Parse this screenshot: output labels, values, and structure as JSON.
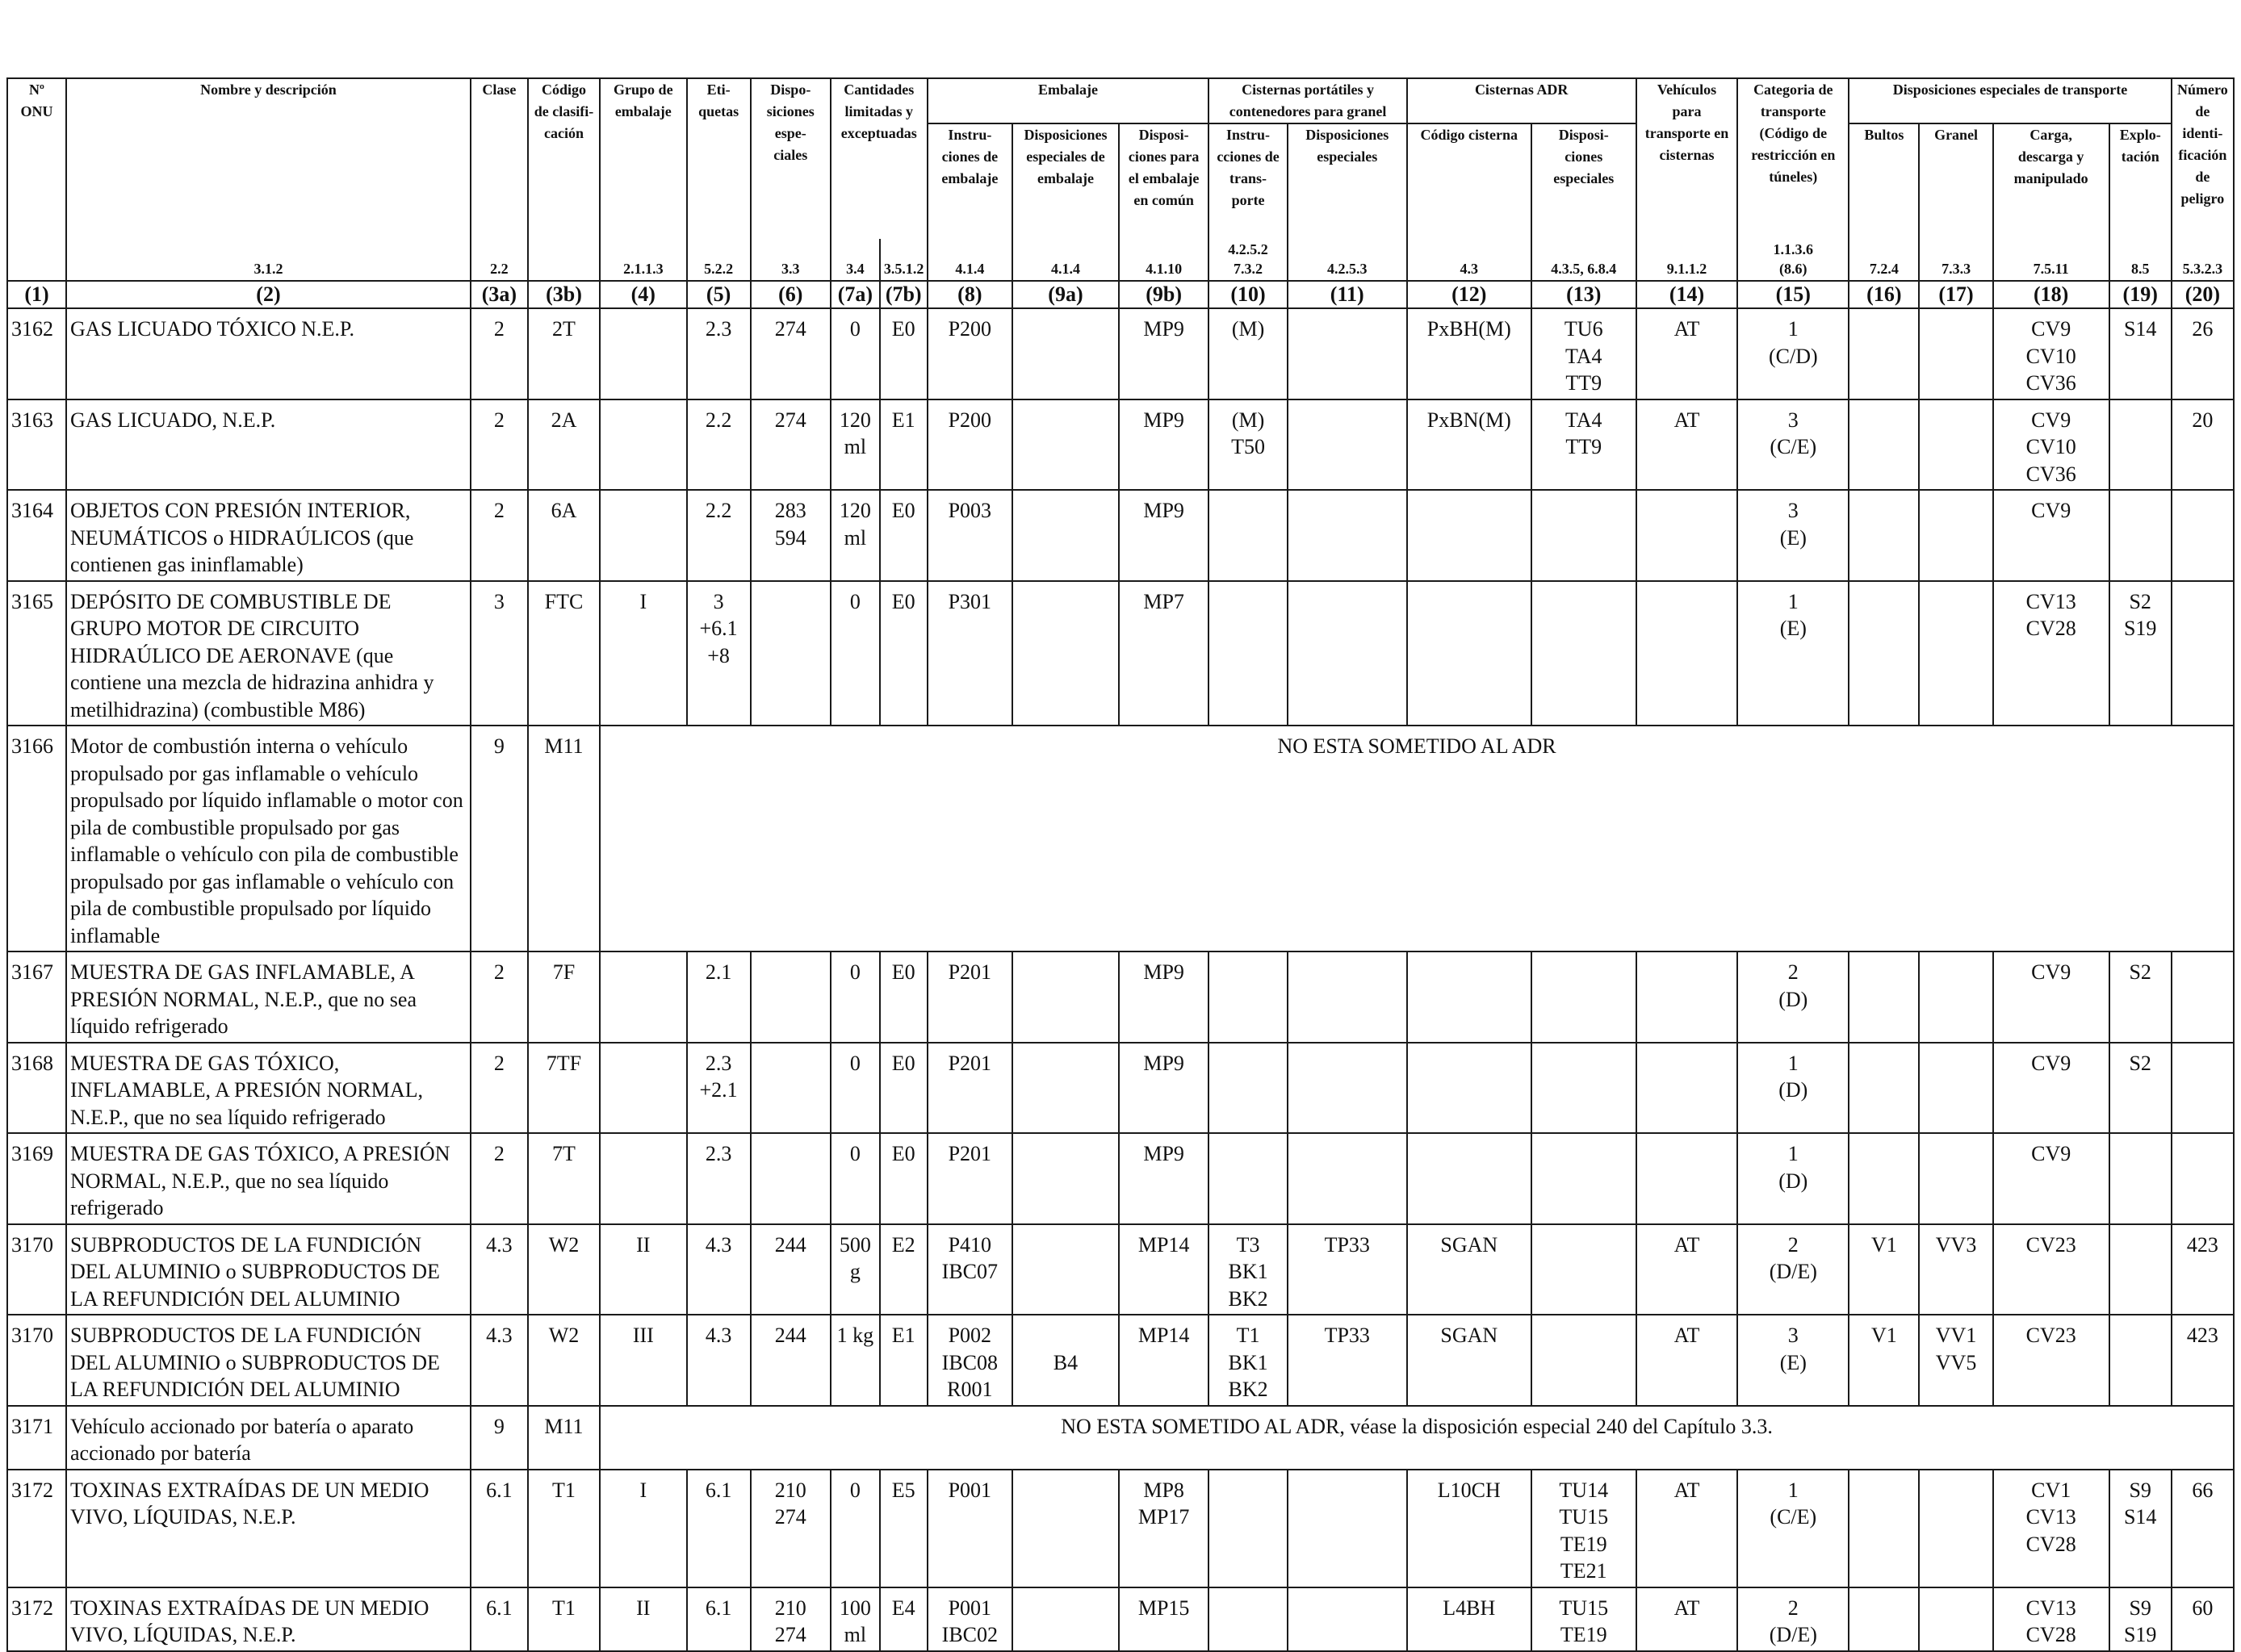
{
  "header": {
    "col1": {
      "label": "Nº\nONU",
      "ref": ""
    },
    "col2": {
      "label": "Nombre y descripción",
      "ref": "3.1.2"
    },
    "col3a": {
      "label": "Clase",
      "ref": "2.2"
    },
    "col3b": {
      "label": "Código\nde clasifi-\ncación",
      "ref": ""
    },
    "col4": {
      "label": "Grupo de\nembalaje",
      "ref": "2.1.1.3"
    },
    "col5": {
      "label": "Eti-\nquetas",
      "ref": "5.2.2"
    },
    "col6": {
      "label": "Dispo-\nsiciones\nespe-\nciales",
      "ref": "3.3"
    },
    "col7": {
      "label": "Cantidades\nlimitadas y\nexceptuadas",
      "ref_a": "3.4",
      "ref_b": "3.5.1.2"
    },
    "col8_9": {
      "label": "Embalaje"
    },
    "col8": {
      "label": "Instru-\nciones de\nembalaje",
      "ref": "4.1.4"
    },
    "col9a": {
      "label": "Disposiciones\nespeciales de\nembalaje",
      "ref": "4.1.4"
    },
    "col9b": {
      "label": "Disposi-\nciones para\nel embalaje\nen común",
      "ref": "4.1.10"
    },
    "col10_11": {
      "label": "Cisternas portátiles y\ncontenedores para granel"
    },
    "col10": {
      "label": "Instru-\ncciones de\ntrans-\nporte",
      "ref": "4.2.5.2\n7.3.2"
    },
    "col11": {
      "label": "Disposiciones\nespeciales",
      "ref": "4.2.5.3"
    },
    "col12_13": {
      "label": "Cisternas ADR"
    },
    "col12": {
      "label": "Código cisterna",
      "ref": "4.3"
    },
    "col13": {
      "label": "Disposi-\nciones\nespeciales",
      "ref": "4.3.5, 6.8.4"
    },
    "col14": {
      "label": "Vehículos\npara\ntransporte en\ncisternas",
      "ref": "9.1.1.2"
    },
    "col15": {
      "label": "Categoria de\ntransporte\n(Código de\nrestricción en\ntúneles)",
      "ref": "1.1.3.6\n(8.6)"
    },
    "col16_19": {
      "label": "Disposiciones especiales de transporte"
    },
    "col16": {
      "label": "Bultos",
      "ref": "7.2.4"
    },
    "col17": {
      "label": "Granel",
      "ref": "7.3.3"
    },
    "col18": {
      "label": "Carga,\ndescarga y\nmanipulado",
      "ref": "7.5.11"
    },
    "col19": {
      "label": "Explo-\ntación",
      "ref": "8.5"
    },
    "col20": {
      "label": "Número\nde identi-\nficación\nde peligro",
      "ref": "5.3.2.3"
    }
  },
  "column_numbers": [
    "(1)",
    "(2)",
    "(3a)",
    "(3b)",
    "(4)",
    "(5)",
    "(6)",
    "(7a)",
    "(7b)",
    "(8)",
    "(9a)",
    "(9b)",
    "(10)",
    "(11)",
    "(12)",
    "(13)",
    "(14)",
    "(15)",
    "(16)",
    "(17)",
    "(18)",
    "(19)",
    "(20)"
  ],
  "rows": [
    {
      "un": "3162",
      "name": "GAS LICUADO TÓXICO N.E.P.",
      "c3a": "2",
      "c3b": "2T",
      "c4": "",
      "c5": "2.3",
      "c6": "274",
      "c7a": "0",
      "c7b": "E0",
      "c8": "P200",
      "c9a": "",
      "c9b": "MP9",
      "c10": "(M)",
      "c11": "",
      "c12": "PxBH(M)",
      "c13": "TU6\nTA4\nTT9",
      "c14": "AT",
      "c15": "1\n(C/D)",
      "c16": "",
      "c17": "",
      "c18": "CV9\nCV10\nCV36",
      "c19": "S14",
      "c20": "26"
    },
    {
      "un": "3163",
      "name": "GAS LICUADO, N.E.P.",
      "c3a": "2",
      "c3b": "2A",
      "c4": "",
      "c5": "2.2",
      "c6": "274",
      "c7a": "120\nml",
      "c7b": "E1",
      "c8": "P200",
      "c9a": "",
      "c9b": "MP9",
      "c10": "(M)\nT50",
      "c11": "",
      "c12": "PxBN(M)",
      "c13": "TA4\nTT9",
      "c14": "AT",
      "c15": "3\n(C/E)",
      "c16": "",
      "c17": "",
      "c18": "CV9\nCV10\nCV36",
      "c19": "",
      "c20": "20"
    },
    {
      "un": "3164",
      "name": "OBJETOS CON PRESIÓN INTERIOR, NEUMÁTICOS o HIDRAÚLICOS (que contienen gas ininflamable)",
      "c3a": "2",
      "c3b": "6A",
      "c4": "",
      "c5": "2.2",
      "c6": "283\n594",
      "c7a": "120\nml",
      "c7b": "E0",
      "c8": "P003",
      "c9a": "",
      "c9b": "MP9",
      "c10": "",
      "c11": "",
      "c12": "",
      "c13": "",
      "c14": "",
      "c15": "3\n(E)",
      "c16": "",
      "c17": "",
      "c18": "CV9",
      "c19": "",
      "c20": ""
    },
    {
      "un": "3165",
      "name": "DEPÓSITO DE COMBUSTIBLE DE GRUPO MOTOR DE CIRCUITO HIDRAÚLICO DE AERONAVE (que contiene una mezcla de hidrazina anhidra y metilhidrazina) (combustible M86)",
      "c3a": "3",
      "c3b": "FTC",
      "c4": "I",
      "c5": "3\n+6.1\n+8",
      "c6": "",
      "c7a": "0",
      "c7b": "E0",
      "c8": "P301",
      "c9a": "",
      "c9b": "MP7",
      "c10": "",
      "c11": "",
      "c12": "",
      "c13": "",
      "c14": "",
      "c15": "1\n(E)",
      "c16": "",
      "c17": "",
      "c18": "CV13\nCV28",
      "c19": "S2\nS19",
      "c20": ""
    },
    {
      "un": "3166",
      "name": "Motor de combustión interna o vehículo propulsado por gas inflamable o vehículo propulsado por líquido inflamable o motor con pila de combustible propulsado por gas inflamable o vehículo con pila de combustible propulsado por gas inflamable o vehículo con pila de combustible propulsado por líquido inflamable",
      "c3a": "9",
      "c3b": "M11",
      "note": "NO ESTA SOMETIDO AL ADR"
    },
    {
      "un": "3167",
      "name": "MUESTRA DE GAS INFLAMABLE, A PRESIÓN NORMAL, N.E.P., que no sea líquido refrigerado",
      "c3a": "2",
      "c3b": "7F",
      "c4": "",
      "c5": "2.1",
      "c6": "",
      "c7a": "0",
      "c7b": "E0",
      "c8": "P201",
      "c9a": "",
      "c9b": "MP9",
      "c10": "",
      "c11": "",
      "c12": "",
      "c13": "",
      "c14": "",
      "c15": "2\n(D)",
      "c16": "",
      "c17": "",
      "c18": "CV9",
      "c19": "S2",
      "c20": ""
    },
    {
      "un": "3168",
      "name": "MUESTRA DE GAS TÓXICO, INFLAMABLE, A PRESIÓN NORMAL, N.E.P., que no sea líquido refrigerado",
      "c3a": "2",
      "c3b": "7TF",
      "c4": "",
      "c5": "2.3\n+2.1",
      "c6": "",
      "c7a": "0",
      "c7b": "E0",
      "c8": "P201",
      "c9a": "",
      "c9b": "MP9",
      "c10": "",
      "c11": "",
      "c12": "",
      "c13": "",
      "c14": "",
      "c15": "1\n(D)",
      "c16": "",
      "c17": "",
      "c18": "CV9",
      "c19": "S2",
      "c20": ""
    },
    {
      "un": "3169",
      "name": "MUESTRA DE GAS TÓXICO, A PRESIÓN NORMAL, N.E.P., que no sea líquido refrigerado",
      "c3a": "2",
      "c3b": "7T",
      "c4": "",
      "c5": "2.3",
      "c6": "",
      "c7a": "0",
      "c7b": "E0",
      "c8": "P201",
      "c9a": "",
      "c9b": "MP9",
      "c10": "",
      "c11": "",
      "c12": "",
      "c13": "",
      "c14": "",
      "c15": "1\n(D)",
      "c16": "",
      "c17": "",
      "c18": "CV9",
      "c19": "",
      "c20": ""
    },
    {
      "un": "3170",
      "name": "SUBPRODUCTOS DE LA FUNDICIÓN DEL ALUMINIO o SUBPRODUCTOS DE LA REFUNDICIÓN DEL  ALUMINIO",
      "c3a": "4.3",
      "c3b": "W2",
      "c4": "II",
      "c5": "4.3",
      "c6": "244",
      "c7a": "500\ng",
      "c7b": "E2",
      "c8": "P410\nIBC07",
      "c9a": "",
      "c9b": "MP14",
      "c10": "T3\nBK1\nBK2",
      "c11": "TP33",
      "c12": "SGAN",
      "c13": "",
      "c14": "AT",
      "c15": "2\n(D/E)",
      "c16": "V1",
      "c17": "VV3",
      "c18": "CV23",
      "c19": "",
      "c20": "423"
    },
    {
      "un": "3170",
      "name": "SUBPRODUCTOS DE LA FUNDICIÓN DEL ALUMINIO o SUBPRODUCTOS DE LA REFUNDICIÓN DEL ALUMINIO",
      "c3a": "4.3",
      "c3b": "W2",
      "c4": "III",
      "c5": "4.3",
      "c6": "244",
      "c7a": "1 kg",
      "c7b": "E1",
      "c8": "P002\nIBC08\nR001",
      "c9a": "\nB4",
      "c9b": "MP14",
      "c10": "T1\nBK1\nBK2",
      "c11": "TP33",
      "c12": "SGAN",
      "c13": "",
      "c14": "AT",
      "c15": "3\n(E)",
      "c16": "V1",
      "c17": "VV1\nVV5",
      "c18": "CV23",
      "c19": "",
      "c20": "423"
    },
    {
      "un": "3171",
      "name": "Vehículo accionado por batería o aparato accionado por batería",
      "c3a": "9",
      "c3b": "M11",
      "note": "NO ESTA SOMETIDO AL ADR, véase la disposición especial 240 del Capítulo 3.3."
    },
    {
      "un": "3172",
      "name": "TOXINAS EXTRAÍDAS DE UN MEDIO VIVO, LÍQUIDAS, N.E.P.",
      "c3a": "6.1",
      "c3b": "T1",
      "c4": "I",
      "c5": "6.1",
      "c6": "210\n274",
      "c7a": "0",
      "c7b": "E5",
      "c8": "P001",
      "c9a": "",
      "c9b": "MP8\nMP17",
      "c10": "",
      "c11": "",
      "c12": "L10CH",
      "c13": "TU14\nTU15\nTE19\nTE21",
      "c14": "AT",
      "c15": "1\n(C/E)",
      "c16": "",
      "c17": "",
      "c18": "CV1\nCV13\nCV28",
      "c19": "S9\nS14",
      "c20": "66"
    },
    {
      "un": "3172",
      "name": "TOXINAS EXTRAÍDAS DE UN MEDIO VIVO, LÍQUIDAS, N.E.P.",
      "c3a": "6.1",
      "c3b": "T1",
      "c4": "II",
      "c5": "6.1",
      "c6": "210\n274",
      "c7a": "100\nml",
      "c7b": "E4",
      "c8": "P001\nIBC02",
      "c9a": "",
      "c9b": "MP15",
      "c10": "",
      "c11": "",
      "c12": "L4BH",
      "c13": "TU15\nTE19",
      "c14": "AT",
      "c15": "2\n(D/E)",
      "c16": "",
      "c17": "",
      "c18": "CV13\nCV28",
      "c19": "S9\nS19",
      "c20": "60"
    }
  ]
}
